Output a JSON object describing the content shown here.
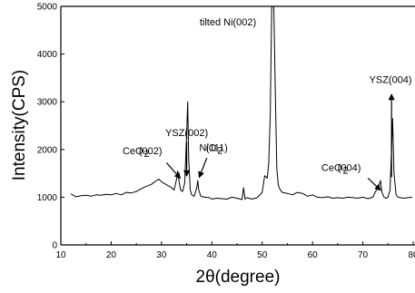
{
  "chart_data": {
    "type": "line",
    "title": "",
    "xlabel": "2θ(degree)",
    "ylabel": "Intensity(CPS)",
    "xlim": [
      10,
      80
    ],
    "ylim": [
      0,
      5000
    ],
    "xticks": [
      10,
      20,
      30,
      40,
      50,
      60,
      70,
      80
    ],
    "yticks": [
      0,
      1000,
      2000,
      3000,
      4000,
      5000
    ],
    "grid": false,
    "series": [
      {
        "color": "#000000",
        "x": [
          12,
          13,
          14,
          15,
          16,
          17,
          18,
          19,
          20,
          21,
          22,
          23,
          24,
          25,
          26,
          27,
          28,
          29,
          29.5,
          30,
          31,
          32,
          32.5,
          33,
          33.2,
          33.5,
          33.8,
          34.2,
          34.6,
          35,
          35.2,
          35.4,
          35.7,
          36,
          36.5,
          37,
          37.2,
          37.4,
          37.8,
          38.5,
          39.5,
          40,
          41,
          42,
          43,
          44,
          45,
          46,
          46.3,
          46.6,
          47,
          48,
          49,
          50,
          50.5,
          51,
          51.3,
          51.6,
          51.9,
          52.1,
          52.3,
          52.6,
          52.9,
          53.2,
          53.6,
          54,
          55,
          56,
          57,
          58,
          59,
          60,
          61,
          62,
          63,
          64,
          65,
          66,
          67,
          68,
          69,
          70,
          71,
          72,
          72.5,
          73,
          73.5,
          73.8,
          74.2,
          74.6,
          75,
          75.4,
          75.7,
          75.9,
          76.2,
          76.6,
          77,
          78,
          79,
          79.8
        ],
        "y": [
          1070,
          1010,
          1030,
          1040,
          1020,
          1050,
          1040,
          1060,
          1050,
          1080,
          1050,
          1100,
          1090,
          1120,
          1180,
          1230,
          1270,
          1350,
          1380,
          1320,
          1260,
          1200,
          1150,
          1380,
          1550,
          1320,
          1150,
          1120,
          1300,
          2350,
          3000,
          1800,
          1150,
          1050,
          1020,
          1200,
          1350,
          1150,
          1020,
          1000,
          990,
          960,
          980,
          970,
          960,
          1000,
          980,
          950,
          1200,
          960,
          990,
          960,
          990,
          1100,
          1450,
          1400,
          1700,
          2700,
          5000,
          5000,
          5000,
          3300,
          1600,
          1250,
          1150,
          1100,
          1080,
          1050,
          1100,
          1080,
          1020,
          1050,
          1000,
          990,
          1010,
          980,
          990,
          980,
          1000,
          990,
          980,
          1000,
          970,
          1000,
          1120,
          1180,
          1350,
          1100,
          1000,
          980,
          1000,
          1150,
          2000,
          2650,
          1500,
          1050,
          1000,
          980,
          990,
          1000
        ]
      }
    ],
    "annotations": [
      {
        "text": "tilted Ni(002)",
        "x": 43.2,
        "y": 4600
      },
      {
        "text": "YSZ(002)",
        "x": 35.0,
        "y": 2280
      },
      {
        "text": "NiO",
        "x": 39.2,
        "y": 1970
      },
      {
        "text": "(111)",
        "x": 41.0,
        "y": 1970
      },
      {
        "text": "YSZ(004)",
        "x": 75.5,
        "y": 3390
      },
      {
        "text": "CeO",
        "x": 24.3,
        "y": 1900
      },
      {
        "text": "(002)",
        "x": 27.8,
        "y": 1900
      },
      {
        "text": "CeO",
        "x": 63.8,
        "y": 1550
      },
      {
        "text": "(004)",
        "x": 67.3,
        "y": 1550
      }
    ],
    "annotation_subscripts": [
      "2",
      "2",
      "2"
    ]
  }
}
